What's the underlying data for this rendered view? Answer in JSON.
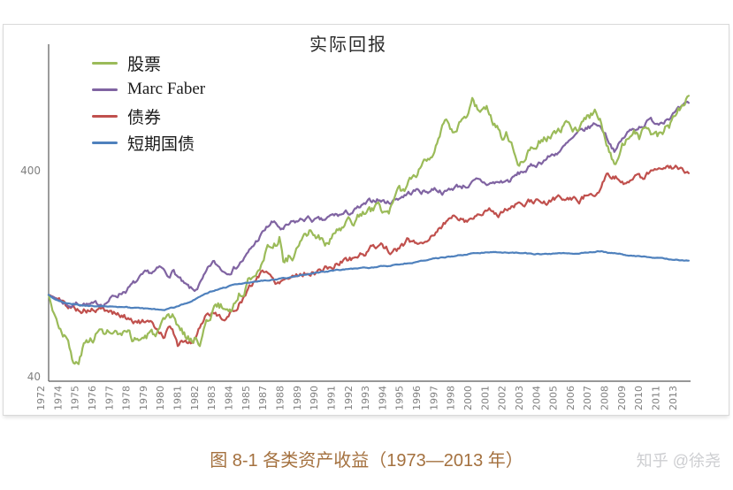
{
  "figure": {
    "title": "实际回报",
    "y_axis_tick_labels": [
      "400",
      "40"
    ]
  },
  "caption": {
    "text": "图 8-1 各类资产收益（1973—2013 年）"
  },
  "watermark": {
    "text": "知乎 @徐尧"
  },
  "chart_data": {
    "type": "line",
    "title": "实际回报",
    "index_base": 100,
    "x_axis": {
      "tick_labels": [
        "1972",
        "1974",
        "1975",
        "1976",
        "1977",
        "1978",
        "1979",
        "1980",
        "1981",
        "1982",
        "1983",
        "1984",
        "1985",
        "1987",
        "1988",
        "1989",
        "1990",
        "1991",
        "1992",
        "1993",
        "1994",
        "1995",
        "1996",
        "1997",
        "1998",
        "2000",
        "2001",
        "2002",
        "2003",
        "2004",
        "2005",
        "2006",
        "2007",
        "2008",
        "2009",
        "2010",
        "2011",
        "2013"
      ]
    },
    "y_axis": {
      "scale": "log",
      "ticks": [
        400,
        40
      ],
      "range_bottom": 38,
      "range_top": 1600
    },
    "legend_position": "top-left",
    "series": [
      {
        "name": "股票",
        "color": "#9BBB59",
        "points": [
          [
            1972.92,
            100
          ],
          [
            1973.2,
            84
          ],
          [
            1973.6,
            72
          ],
          [
            1974.0,
            65
          ],
          [
            1974.5,
            46
          ],
          [
            1974.75,
            45
          ],
          [
            1975.2,
            56
          ],
          [
            1975.9,
            65
          ],
          [
            1976.7,
            66
          ],
          [
            1977.4,
            62
          ],
          [
            1978.4,
            60
          ],
          [
            1979.6,
            64
          ],
          [
            1980.9,
            74
          ],
          [
            1981.8,
            62
          ],
          [
            1982.6,
            61
          ],
          [
            1983.5,
            88
          ],
          [
            1984.5,
            85
          ],
          [
            1985.5,
            110
          ],
          [
            1986.5,
            150
          ],
          [
            1987.7,
            192
          ],
          [
            1987.95,
            145
          ],
          [
            1988.5,
            158
          ],
          [
            1989.8,
            200
          ],
          [
            1990.2,
            190
          ],
          [
            1990.8,
            170
          ],
          [
            1991.3,
            200
          ],
          [
            1992.0,
            215
          ],
          [
            1993.0,
            245
          ],
          [
            1994.0,
            262
          ],
          [
            1994.6,
            252
          ],
          [
            1995.5,
            310
          ],
          [
            1996.4,
            390
          ],
          [
            1997.0,
            470
          ],
          [
            1997.5,
            520
          ],
          [
            1998.3,
            660
          ],
          [
            1998.7,
            575
          ],
          [
            1999.3,
            690
          ],
          [
            2000.0,
            860
          ],
          [
            2000.5,
            780
          ],
          [
            2000.9,
            815
          ],
          [
            2001.4,
            680
          ],
          [
            2001.9,
            600
          ],
          [
            2002.2,
            640
          ],
          [
            2002.7,
            500
          ],
          [
            2003.1,
            450
          ],
          [
            2003.6,
            525
          ],
          [
            2004.1,
            580
          ],
          [
            2004.8,
            600
          ],
          [
            2005.3,
            590
          ],
          [
            2006.1,
            665
          ],
          [
            2006.5,
            625
          ],
          [
            2007.3,
            725
          ],
          [
            2007.8,
            790
          ],
          [
            2008.3,
            645
          ],
          [
            2008.8,
            520
          ],
          [
            2009.15,
            432
          ],
          [
            2009.8,
            565
          ],
          [
            2010.4,
            615
          ],
          [
            2010.7,
            572
          ],
          [
            2011.3,
            655
          ],
          [
            2011.8,
            585
          ],
          [
            2012.4,
            655
          ],
          [
            2012.8,
            690
          ],
          [
            2013.3,
            790
          ],
          [
            2013.9,
            960
          ]
        ]
      },
      {
        "name": "Marc Faber",
        "color": "#8064A2",
        "points": [
          [
            1972.92,
            100
          ],
          [
            1973.4,
            96
          ],
          [
            1974.3,
            89
          ],
          [
            1975.0,
            92
          ],
          [
            1975.8,
            88
          ],
          [
            1976.5,
            92
          ],
          [
            1977.3,
            100
          ],
          [
            1978.2,
            110
          ],
          [
            1979.0,
            122
          ],
          [
            1980.1,
            133
          ],
          [
            1980.5,
            124
          ],
          [
            1980.9,
            131
          ],
          [
            1981.6,
            110
          ],
          [
            1982.2,
            103
          ],
          [
            1982.8,
            118
          ],
          [
            1983.4,
            142
          ],
          [
            1984.2,
            130
          ],
          [
            1984.9,
            138
          ],
          [
            1985.6,
            155
          ],
          [
            1986.4,
            190
          ],
          [
            1987.2,
            225
          ],
          [
            1987.9,
            205
          ],
          [
            1988.4,
            218
          ],
          [
            1989.4,
            235
          ],
          [
            1990.4,
            225
          ],
          [
            1991.1,
            240
          ],
          [
            1992.1,
            248
          ],
          [
            1993.1,
            268
          ],
          [
            1993.9,
            292
          ],
          [
            1994.6,
            280
          ],
          [
            1995.6,
            305
          ],
          [
            1996.4,
            320
          ],
          [
            1997.1,
            317
          ],
          [
            1997.6,
            330
          ],
          [
            1998.3,
            315
          ],
          [
            1998.9,
            335
          ],
          [
            1999.6,
            340
          ],
          [
            2000.3,
            352
          ],
          [
            2000.9,
            344
          ],
          [
            2001.6,
            350
          ],
          [
            2002.4,
            358
          ],
          [
            2003.1,
            390
          ],
          [
            2003.9,
            420
          ],
          [
            2004.6,
            455
          ],
          [
            2005.1,
            475
          ],
          [
            2005.9,
            520
          ],
          [
            2006.6,
            580
          ],
          [
            2007.1,
            620
          ],
          [
            2007.95,
            680
          ],
          [
            2008.4,
            630
          ],
          [
            2008.9,
            535
          ],
          [
            2009.15,
            505
          ],
          [
            2009.9,
            605
          ],
          [
            2010.6,
            655
          ],
          [
            2011.3,
            700
          ],
          [
            2011.9,
            688
          ],
          [
            2012.4,
            730
          ],
          [
            2012.9,
            760
          ],
          [
            2013.4,
            790
          ],
          [
            2013.9,
            835
          ]
        ]
      },
      {
        "name": "债券",
        "color": "#C0504D",
        "points": [
          [
            1972.92,
            100
          ],
          [
            1973.5,
            95
          ],
          [
            1974.2,
            87
          ],
          [
            1975.0,
            85
          ],
          [
            1976.0,
            84
          ],
          [
            1977.0,
            82
          ],
          [
            1978.0,
            77
          ],
          [
            1979.1,
            73
          ],
          [
            1979.9,
            68
          ],
          [
            1980.3,
            64
          ],
          [
            1980.7,
            73
          ],
          [
            1981.2,
            56
          ],
          [
            1981.7,
            61
          ],
          [
            1982.1,
            58
          ],
          [
            1983.0,
            82
          ],
          [
            1983.7,
            80
          ],
          [
            1984.4,
            77
          ],
          [
            1985.1,
            92
          ],
          [
            1985.9,
            110
          ],
          [
            1986.6,
            134
          ],
          [
            1987.4,
            116
          ],
          [
            1988.1,
            122
          ],
          [
            1989.1,
            128
          ],
          [
            1990.0,
            130
          ],
          [
            1991.0,
            136
          ],
          [
            1991.9,
            148
          ],
          [
            1992.6,
            152
          ],
          [
            1993.4,
            165
          ],
          [
            1994.2,
            178
          ],
          [
            1994.9,
            158
          ],
          [
            1995.9,
            182
          ],
          [
            1996.6,
            176
          ],
          [
            1997.4,
            195
          ],
          [
            1998.3,
            225
          ],
          [
            1999.05,
            244
          ],
          [
            1999.6,
            230
          ],
          [
            2000.4,
            248
          ],
          [
            2001.1,
            255
          ],
          [
            2001.9,
            250
          ],
          [
            2002.7,
            275
          ],
          [
            2003.3,
            268
          ],
          [
            2003.95,
            285
          ],
          [
            2004.6,
            275
          ],
          [
            2005.3,
            292
          ],
          [
            2006.1,
            295
          ],
          [
            2006.8,
            288
          ],
          [
            2007.5,
            310
          ],
          [
            2008.1,
            332
          ],
          [
            2008.6,
            375
          ],
          [
            2008.9,
            355
          ],
          [
            2009.4,
            365
          ],
          [
            2009.9,
            352
          ],
          [
            2010.5,
            378
          ],
          [
            2011.0,
            368
          ],
          [
            2011.6,
            398
          ],
          [
            2012.1,
            408
          ],
          [
            2012.6,
            420
          ],
          [
            2013.0,
            408
          ],
          [
            2013.35,
            418
          ],
          [
            2013.7,
            390
          ],
          [
            2013.9,
            382
          ]
        ]
      },
      {
        "name": "短期国债",
        "color": "#4F81BD",
        "points": [
          [
            1972.92,
            100
          ],
          [
            1973.3,
            95
          ],
          [
            1974.0,
            91
          ],
          [
            1974.8,
            89
          ],
          [
            1975.5,
            88.5
          ],
          [
            1976.5,
            88
          ],
          [
            1977.5,
            87
          ],
          [
            1978.5,
            86
          ],
          [
            1979.5,
            85
          ],
          [
            1980.3,
            84.5
          ],
          [
            1981.0,
            87
          ],
          [
            1981.8,
            92
          ],
          [
            1982.5,
            97
          ],
          [
            1983.4,
            104
          ],
          [
            1984.5,
            110
          ],
          [
            1985.5,
            114
          ],
          [
            1986.5,
            117
          ],
          [
            1987.5,
            119
          ],
          [
            1988.5,
            122
          ],
          [
            1989.5,
            126
          ],
          [
            1990.5,
            129
          ],
          [
            1991.5,
            132
          ],
          [
            1992.5,
            134
          ],
          [
            1993.5,
            135.5
          ],
          [
            1994.5,
            137.5
          ],
          [
            1995.8,
            142
          ],
          [
            1997.0,
            147
          ],
          [
            1998.0,
            151
          ],
          [
            1999.0,
            155
          ],
          [
            2000.0,
            158.5
          ],
          [
            2000.6,
            160
          ],
          [
            2001.5,
            161
          ],
          [
            2002.5,
            160
          ],
          [
            2003.5,
            158.5
          ],
          [
            2004.5,
            157.5
          ],
          [
            2005.5,
            157.5
          ],
          [
            2006.5,
            158.5
          ],
          [
            2007.5,
            160.5
          ],
          [
            2008.3,
            163
          ],
          [
            2008.7,
            160.5
          ],
          [
            2009.2,
            159
          ],
          [
            2010.0,
            155.5
          ],
          [
            2010.8,
            153
          ],
          [
            2011.5,
            151.5
          ],
          [
            2012.2,
            149.5
          ],
          [
            2013.0,
            148
          ],
          [
            2013.9,
            146.5
          ]
        ]
      }
    ]
  }
}
